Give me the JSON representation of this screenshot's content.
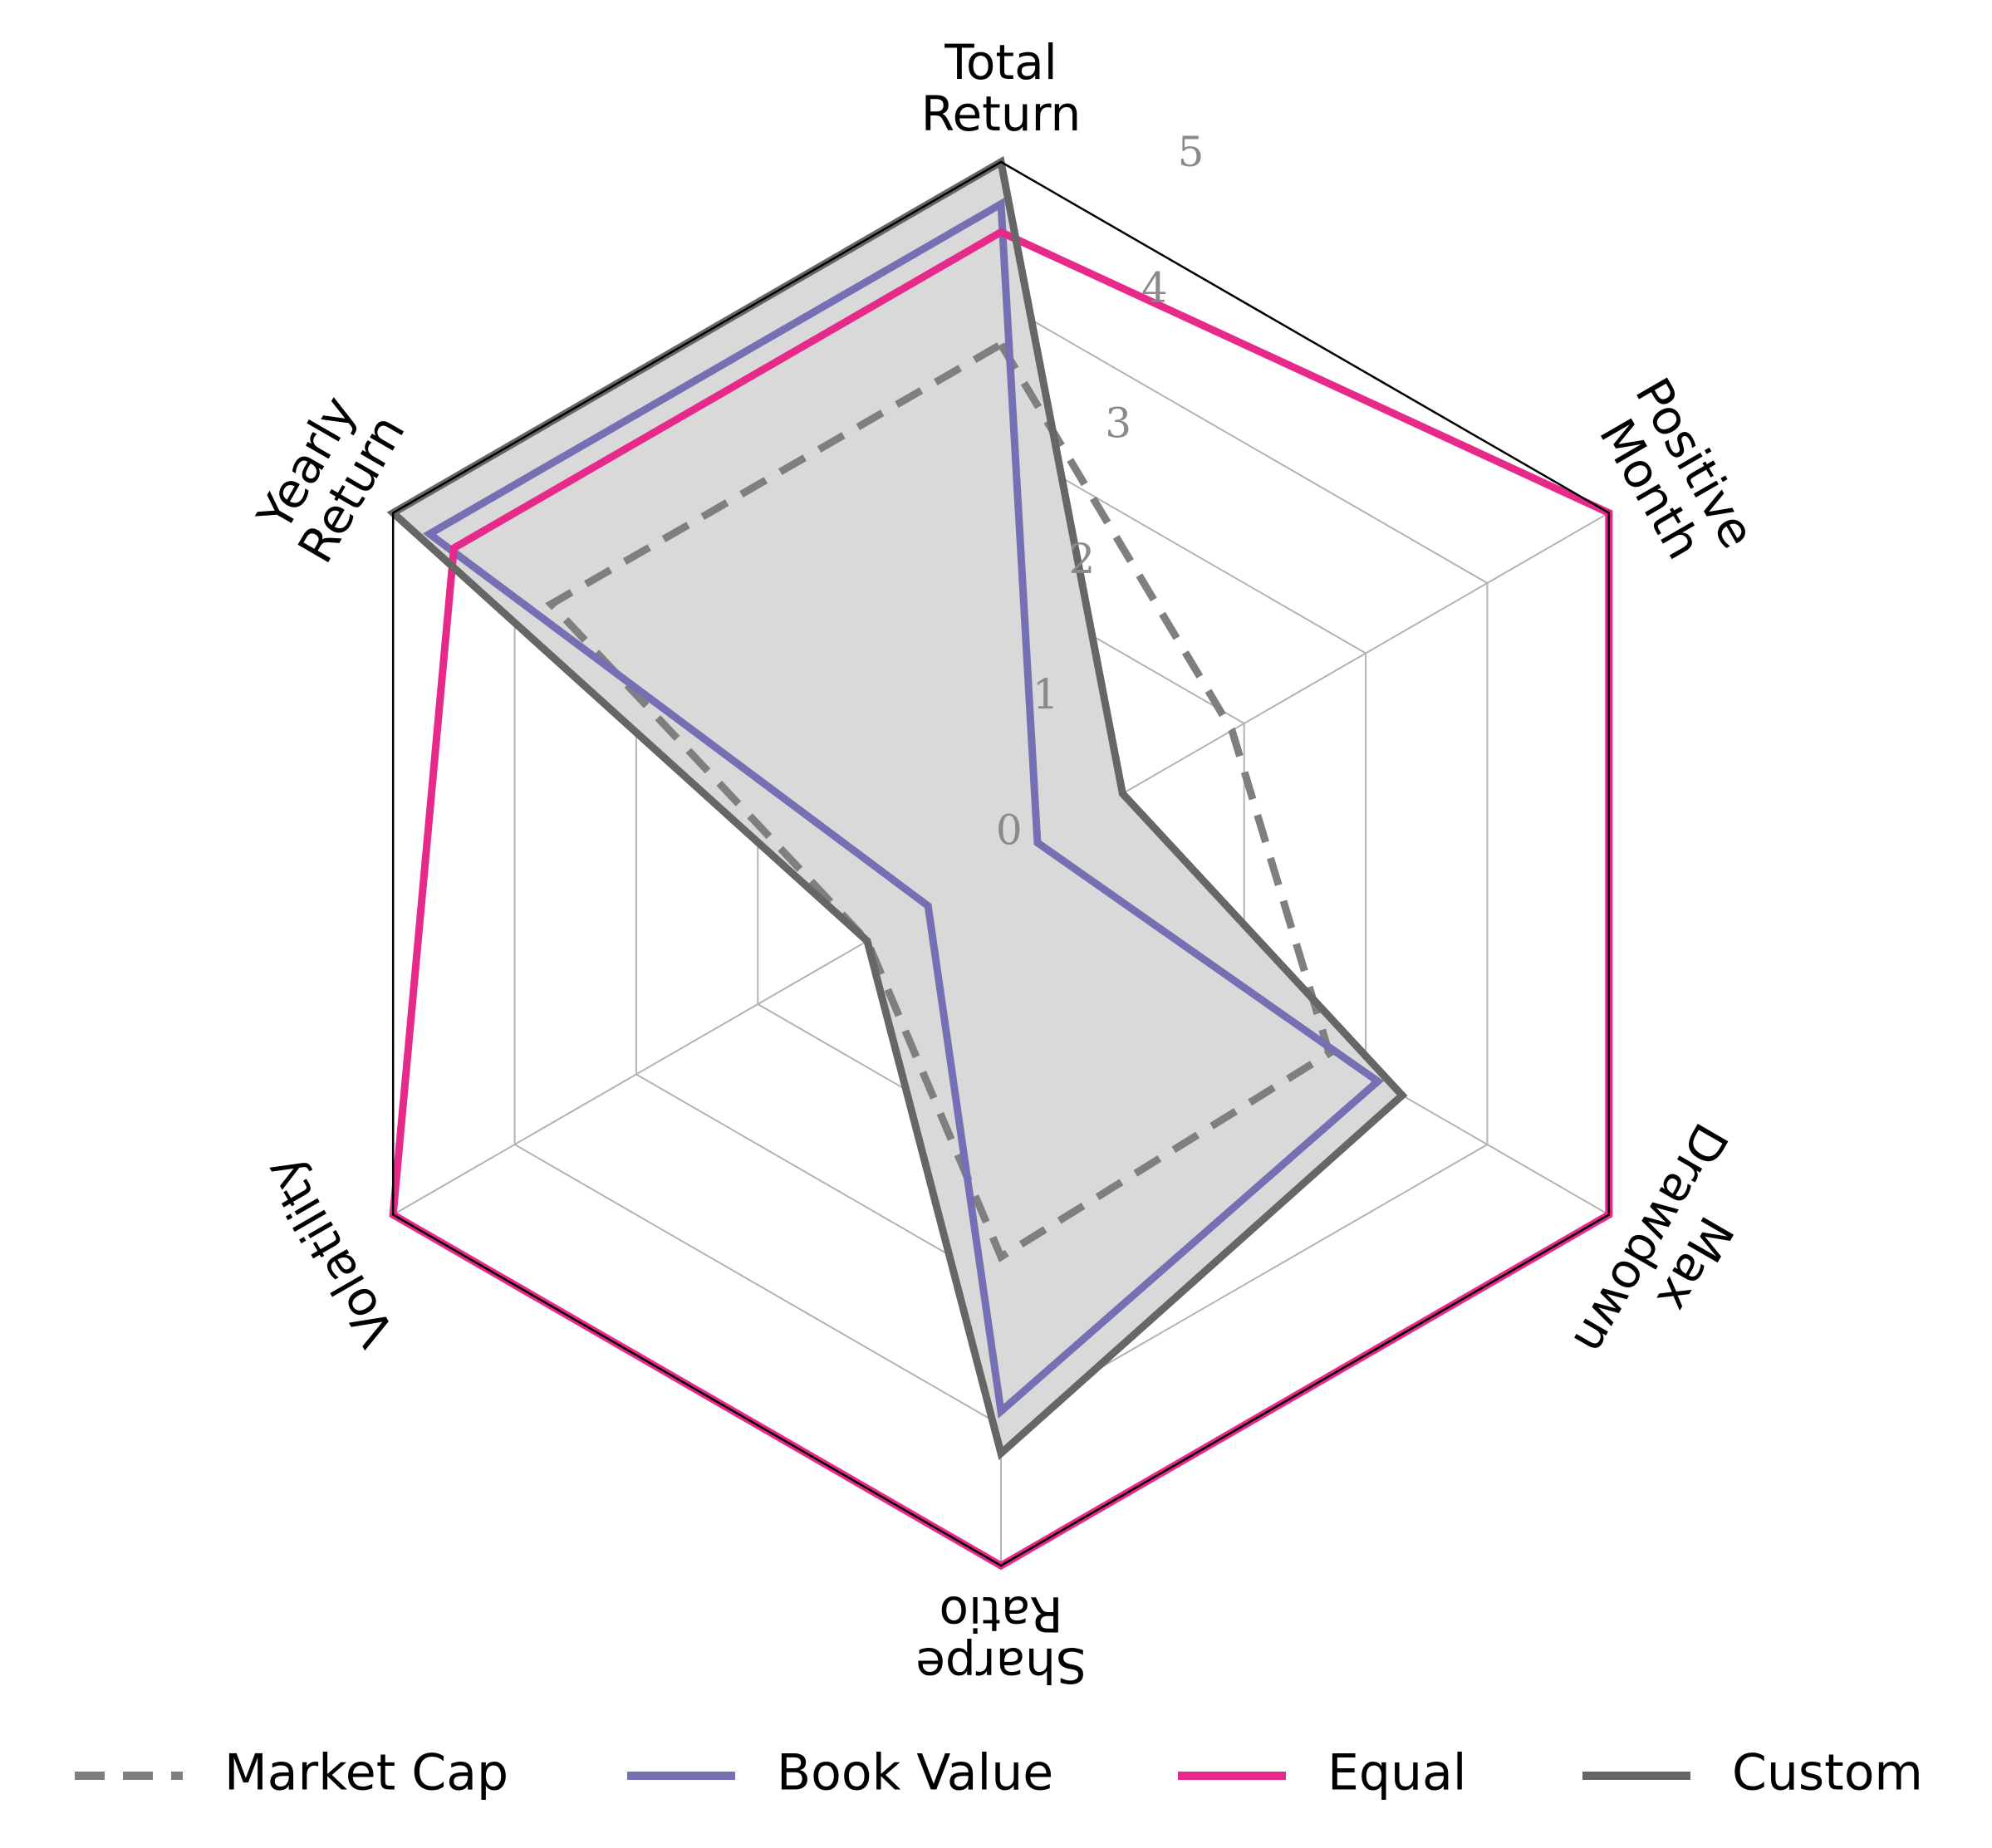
{
  "chart_data": {
    "type": "radar",
    "axes": [
      {
        "lines": [
          "Total",
          "Return"
        ]
      },
      {
        "lines": [
          "Positive",
          "Month"
        ]
      },
      {
        "lines": [
          "Max",
          "Drawdown"
        ]
      },
      {
        "lines": [
          "Sharpe",
          "Ratio"
        ]
      },
      {
        "lines": [
          "Volatility"
        ]
      },
      {
        "lines": [
          "Yearly",
          "Return"
        ]
      }
    ],
    "rlim": [
      0,
      5
    ],
    "ticks": [
      "0",
      "1",
      "2",
      "3",
      "4",
      "5"
    ],
    "tick_values": [
      0,
      1,
      2,
      3,
      4,
      5
    ],
    "grid": true,
    "legend_position": "bottom",
    "series": [
      {
        "name": "Market Cap",
        "color": "#7f7f7f",
        "style": "dashed",
        "values": [
          3.7,
          1.9,
          2.7,
          2.8,
          1.1,
          3.7
        ]
      },
      {
        "name": "Book Value",
        "color": "#7570b3",
        "style": "solid",
        "values": [
          4.7,
          0.3,
          3.1,
          3.9,
          0.6,
          4.7
        ]
      },
      {
        "name": "Equal",
        "color": "#e7298a",
        "style": "solid",
        "values": [
          4.5,
          5.0,
          5.0,
          5.0,
          5.0,
          4.5
        ]
      },
      {
        "name": "Custom",
        "color": "#666666",
        "style": "solid",
        "values": [
          5.0,
          1.0,
          3.3,
          4.2,
          1.1,
          5.0
        ],
        "fill": "#d9d9d9"
      }
    ]
  }
}
